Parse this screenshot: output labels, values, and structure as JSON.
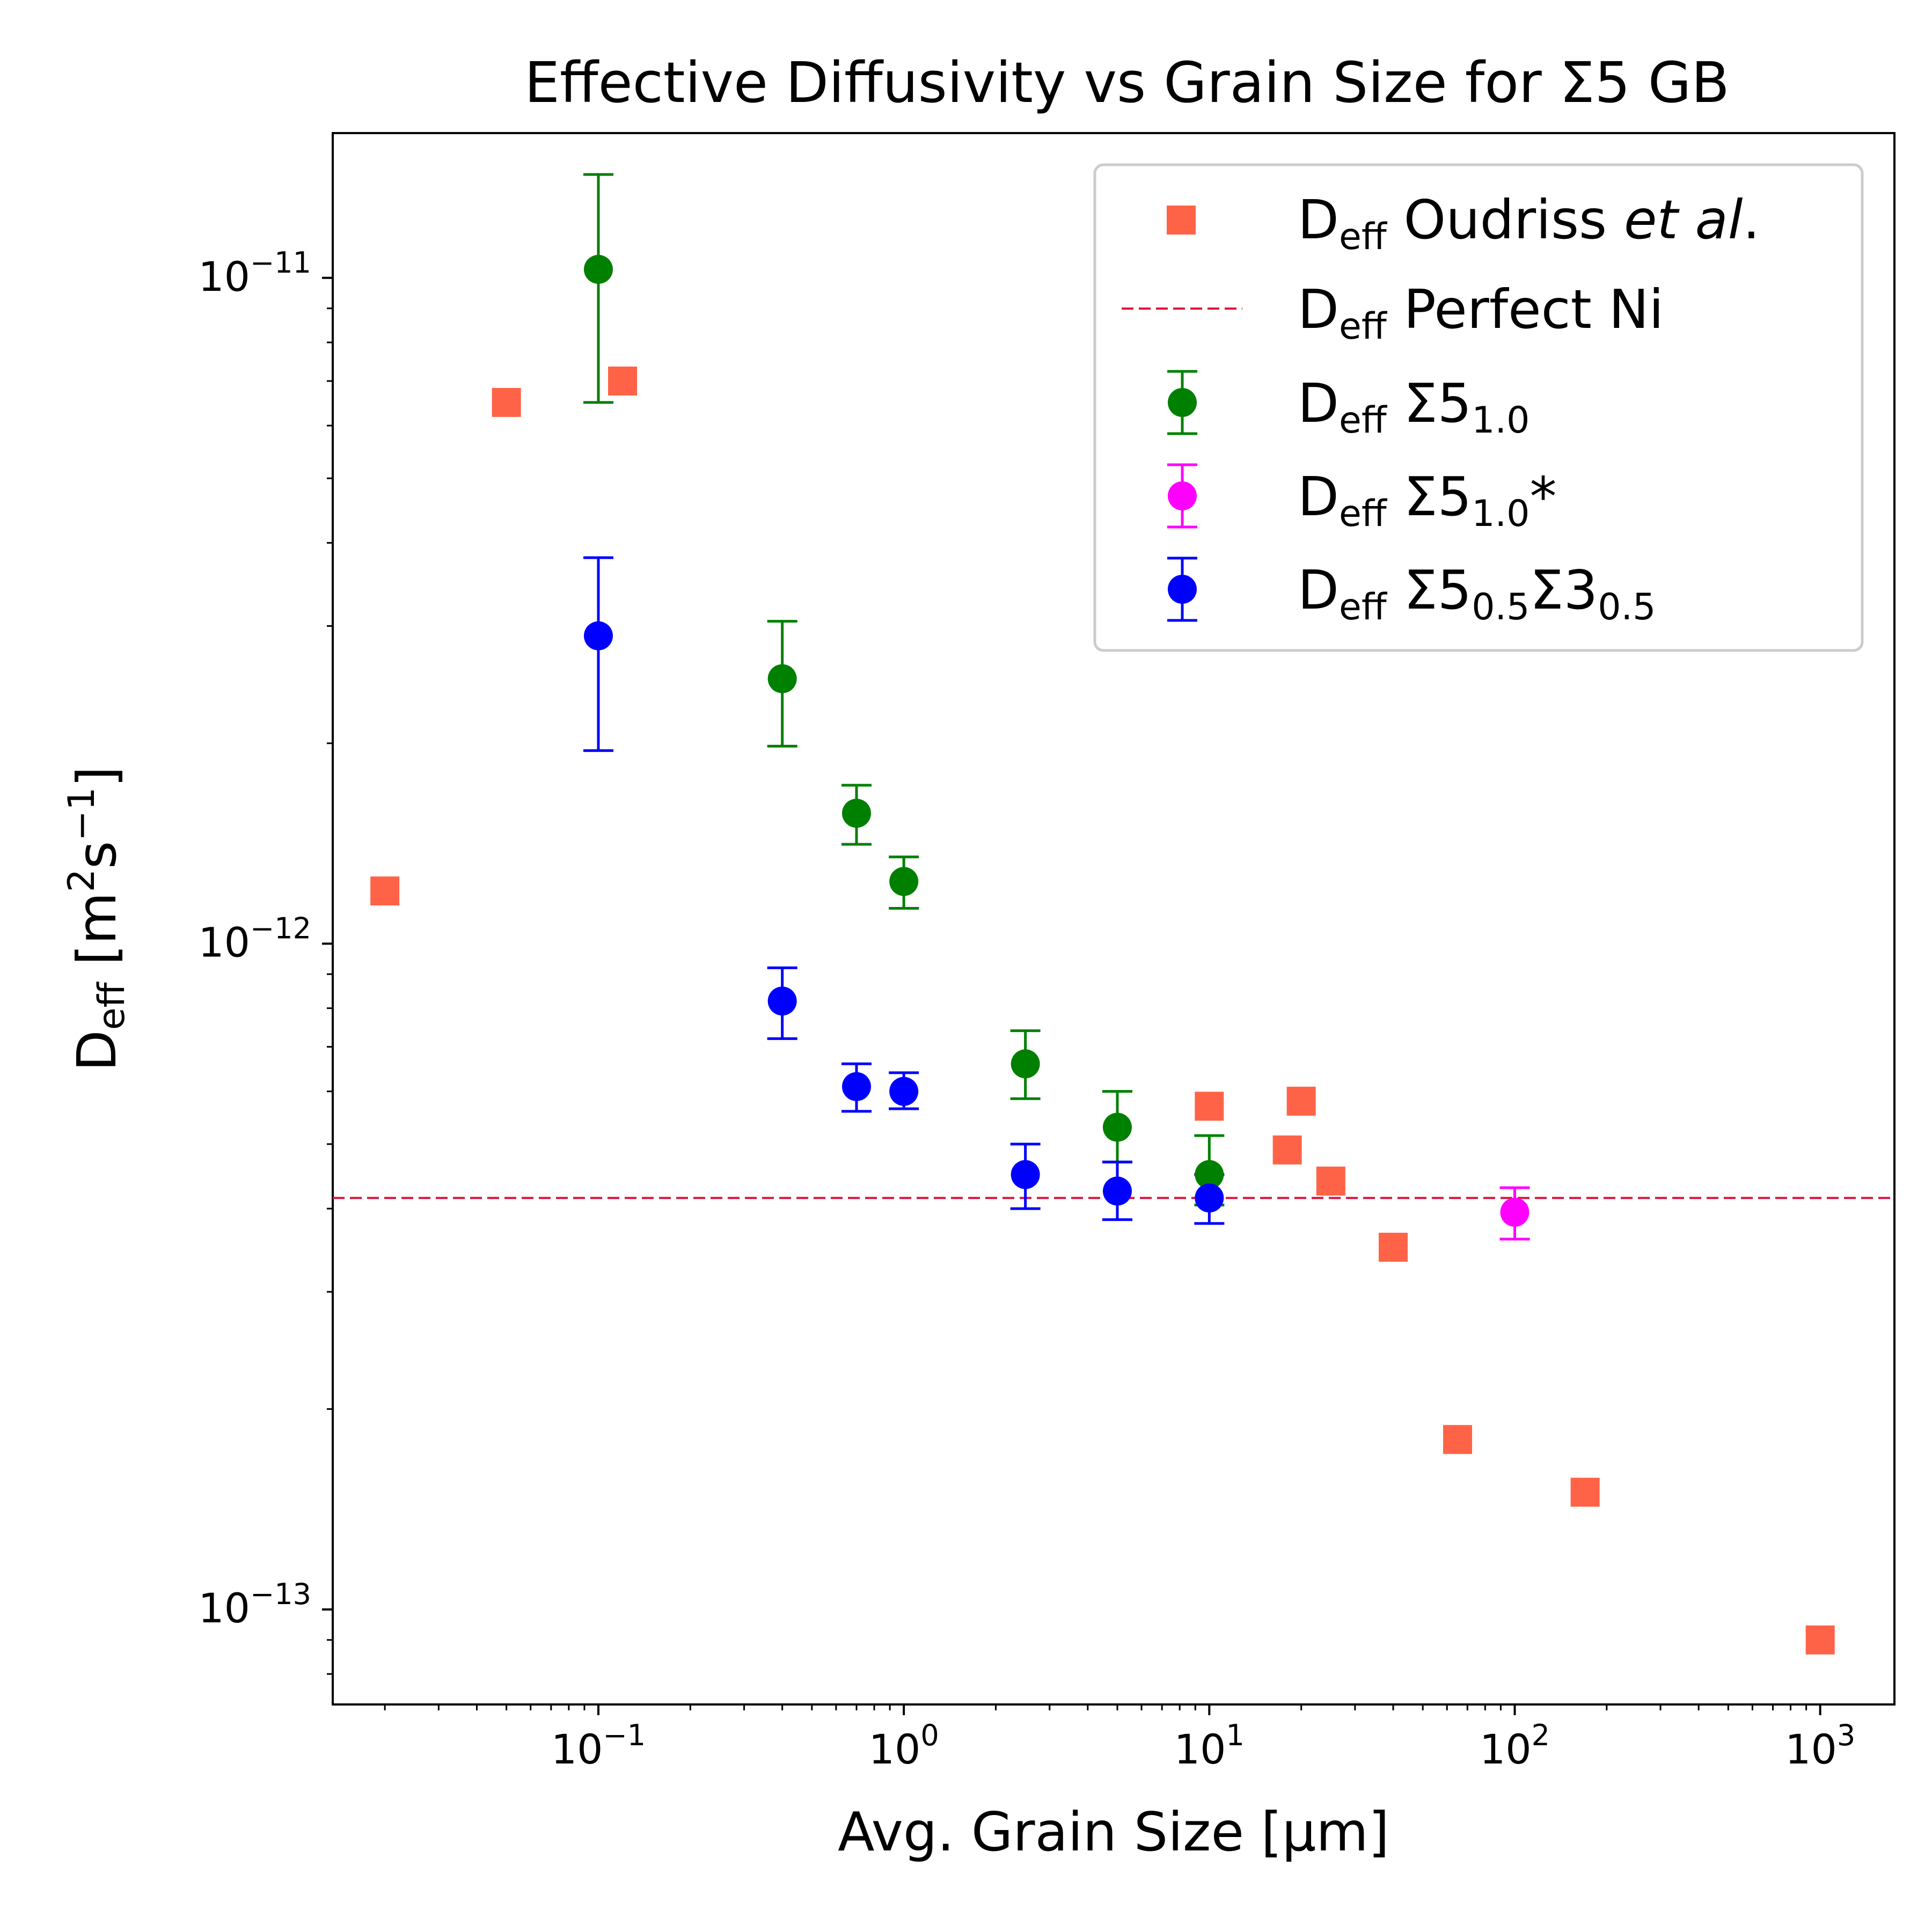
{
  "chart_data": {
    "type": "scatter",
    "title": "Effective Diffusivity vs Grain Size for Σ5 GB",
    "xlabel": "Avg. Grain Size [μm]",
    "ylabel": {
      "base": "D",
      "sub": "eff",
      "unit_open": " [m",
      "exp1": "2",
      "unit_mid": "s",
      "exp2": "−1",
      "unit_close": "]"
    },
    "xscale": "log",
    "yscale": "log",
    "xlim": [
      0.0135,
      1750
    ],
    "ylim": [
      7.2e-14,
      1.65e-11
    ],
    "x_ticks": [
      {
        "value": 0.1,
        "base": "10",
        "exp": "−1"
      },
      {
        "value": 1,
        "base": "10",
        "exp": "0"
      },
      {
        "value": 10,
        "base": "10",
        "exp": "1"
      },
      {
        "value": 100,
        "base": "10",
        "exp": "2"
      },
      {
        "value": 1000,
        "base": "10",
        "exp": "3"
      }
    ],
    "y_ticks": [
      {
        "value": 1e-11,
        "base": "10",
        "exp": "−11"
      },
      {
        "value": 1e-12,
        "base": "10",
        "exp": "−12"
      },
      {
        "value": 1e-13,
        "base": "10",
        "exp": "−13"
      }
    ],
    "series": [
      {
        "name": "Deff Oudriss et al.",
        "color": "#ff6347",
        "marker": "square",
        "points": [
          {
            "x": 0.02,
            "y": 1.2e-12
          },
          {
            "x": 0.05,
            "y": 6.5e-12
          },
          {
            "x": 0.12,
            "y": 7e-12
          },
          {
            "x": 10,
            "y": 5.7e-13
          },
          {
            "x": 18,
            "y": 4.9e-13
          },
          {
            "x": 20,
            "y": 5.8e-13
          },
          {
            "x": 25,
            "y": 4.4e-13
          },
          {
            "x": 40,
            "y": 3.5e-13
          },
          {
            "x": 65,
            "y": 1.8e-13
          },
          {
            "x": 170,
            "y": 1.5e-13
          },
          {
            "x": 1000,
            "y": 9e-14
          }
        ]
      },
      {
        "name": "Deff Perfect Ni",
        "color": "#dc143c",
        "marker": "dashed-line",
        "y": 4.15e-13
      },
      {
        "name": "Deff Σ5 1.0",
        "color": "#008000",
        "marker": "circle",
        "points": [
          {
            "x": 0.1,
            "y": 1.03e-11,
            "ylo": 6.5e-12,
            "yhi": 1.43e-11
          },
          {
            "x": 0.4,
            "y": 2.5e-12,
            "ylo": 1.98e-12,
            "yhi": 3.05e-12
          },
          {
            "x": 0.7,
            "y": 1.57e-12,
            "ylo": 1.41e-12,
            "yhi": 1.73e-12
          },
          {
            "x": 1.0,
            "y": 1.24e-12,
            "ylo": 1.13e-12,
            "yhi": 1.35e-12
          },
          {
            "x": 2.5,
            "y": 6.6e-13,
            "ylo": 5.85e-13,
            "yhi": 7.4e-13
          },
          {
            "x": 5.0,
            "y": 5.3e-13,
            "ylo": 4.7e-13,
            "yhi": 6e-13
          },
          {
            "x": 10,
            "y": 4.5e-13,
            "ylo": 4.05e-13,
            "yhi": 5.15e-13
          }
        ]
      },
      {
        "name": "Deff Σ5 1.0*",
        "color": "#ff00ff",
        "marker": "circle",
        "points": [
          {
            "x": 100,
            "y": 3.95e-13,
            "ylo": 3.6e-13,
            "yhi": 4.3e-13
          }
        ]
      },
      {
        "name": "Deff Σ5 0.5 Σ3 0.5",
        "color": "#0000ff",
        "marker": "circle",
        "points": [
          {
            "x": 0.1,
            "y": 2.9e-12,
            "ylo": 1.95e-12,
            "yhi": 3.8e-12
          },
          {
            "x": 0.4,
            "y": 8.2e-13,
            "ylo": 7.2e-13,
            "yhi": 9.2e-13
          },
          {
            "x": 0.7,
            "y": 6.1e-13,
            "ylo": 5.6e-13,
            "yhi": 6.6e-13
          },
          {
            "x": 1.0,
            "y": 6e-13,
            "ylo": 5.65e-13,
            "yhi": 6.4e-13
          },
          {
            "x": 2.5,
            "y": 4.5e-13,
            "ylo": 4e-13,
            "yhi": 5e-13
          },
          {
            "x": 5.0,
            "y": 4.25e-13,
            "ylo": 3.85e-13,
            "yhi": 4.7e-13
          },
          {
            "x": 10,
            "y": 4.15e-13,
            "ylo": 3.8e-13,
            "yhi": 4.5e-13
          }
        ]
      }
    ],
    "legend": {
      "position": "top-right",
      "entries": [
        {
          "base": "D",
          "sub": "eff",
          "text": " Oudriss ",
          "italic": "et al",
          "tail": "."
        },
        {
          "base": "D",
          "sub": "eff",
          "text": " Perfect Ni"
        },
        {
          "base": "D",
          "sub": "eff",
          "text": " Σ5",
          "sub2": "1.0"
        },
        {
          "base": "D",
          "sub": "eff",
          "text": " Σ5",
          "sub2": "1.0",
          "tail": "*"
        },
        {
          "base": "D",
          "sub": "eff",
          "text": " Σ5",
          "sub2": "0.5",
          "text2": "Σ3",
          "sub3": "0.5"
        }
      ]
    }
  }
}
